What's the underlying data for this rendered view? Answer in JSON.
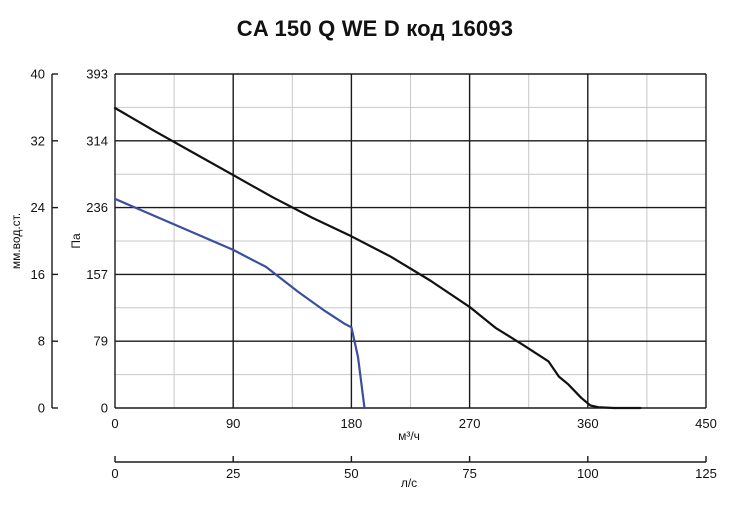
{
  "chart_data": {
    "type": "line",
    "title": "CA 150 Q WE D код 16093",
    "xlabel": "м³/ч",
    "ylabel": "Па",
    "ylabel_secondary": "мм.вод.ст.",
    "xlabel_secondary": "л/с",
    "xlim": [
      0,
      450
    ],
    "ylim": [
      0,
      393
    ],
    "x_ticks": [
      "0",
      "90",
      "180",
      "270",
      "360",
      "450"
    ],
    "y_ticks": [
      "0",
      "79",
      "157",
      "236",
      "314",
      "393"
    ],
    "y2_ticks": [
      "0",
      "8",
      "16",
      "24",
      "32",
      "40"
    ],
    "x2_ticks": [
      "0",
      "25",
      "50",
      "75",
      "100",
      "125"
    ],
    "grid": true,
    "series": [
      {
        "color": "#111111",
        "x": [
          0,
          30,
          60,
          90,
          120,
          150,
          180,
          210,
          240,
          270,
          290,
          310,
          330,
          338,
          345,
          355,
          362,
          368,
          380,
          400
        ],
        "y": [
          353,
          326,
          300,
          274,
          248,
          224,
          202,
          178,
          150,
          119,
          94,
          75,
          55,
          37,
          28,
          12,
          3,
          1,
          0,
          0
        ]
      },
      {
        "color": "#3b4fa0",
        "x": [
          0,
          30,
          60,
          90,
          115,
          140,
          160,
          175,
          180,
          185,
          190
        ],
        "y": [
          246,
          226,
          206,
          186,
          166,
          136,
          114,
          99,
          95,
          60,
          0
        ]
      }
    ]
  }
}
